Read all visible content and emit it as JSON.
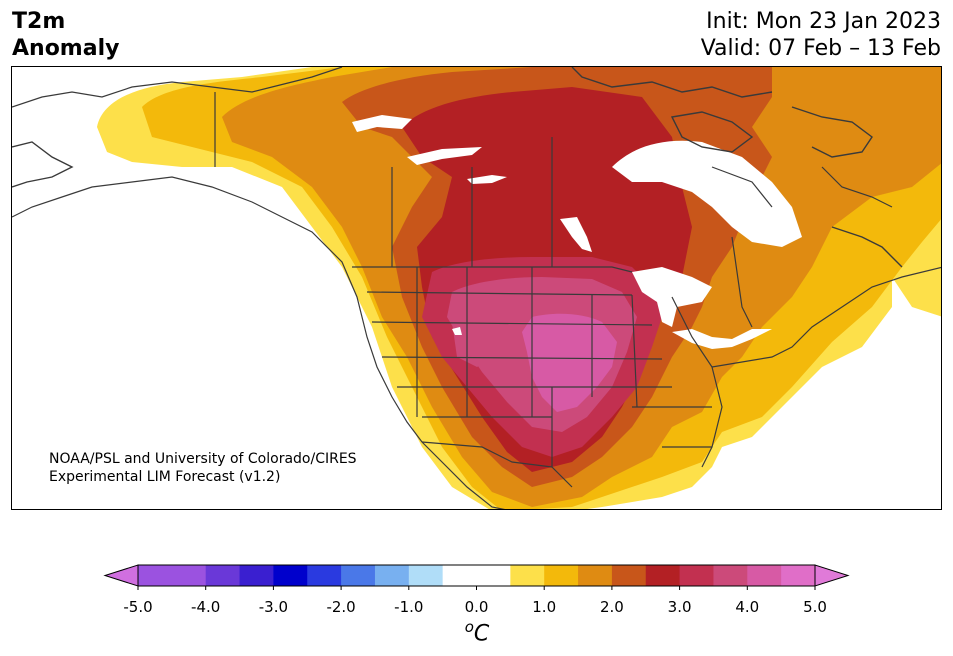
{
  "header": {
    "title_line1": "T2m",
    "title_line2": "Anomaly",
    "init": "Init: Mon 23 Jan 2023",
    "valid": "Valid: 07 Feb – 13 Feb"
  },
  "map": {
    "credit_line1": "NOAA/PSL and University of Colorado/CIRES",
    "credit_line2": "Experimental LIM Forecast (v1.2)",
    "region": "North America",
    "features": [
      "coastlines",
      "country-borders",
      "us-state-borders",
      "canadian-province-borders",
      "great-lakes"
    ]
  },
  "colorbar": {
    "unit_sup": "o",
    "unit_main": "C",
    "extend": "both",
    "ticks": [
      "-5.0",
      "-4.0",
      "-3.0",
      "-2.0",
      "-1.0",
      "0.0",
      "1.0",
      "2.0",
      "3.0",
      "4.0",
      "5.0"
    ],
    "under_color": "#d06fe0",
    "over_color": "#e07ad8",
    "levels": [
      {
        "lo": -5.0,
        "hi": -4.5,
        "color": "#9b52e0"
      },
      {
        "lo": -4.5,
        "hi": -4.0,
        "color": "#9b52e0"
      },
      {
        "lo": -4.0,
        "hi": -3.5,
        "color": "#6a38d8"
      },
      {
        "lo": -3.5,
        "hi": -3.0,
        "color": "#3a1fd0"
      },
      {
        "lo": -3.0,
        "hi": -2.5,
        "color": "#0000cc"
      },
      {
        "lo": -2.5,
        "hi": -2.0,
        "color": "#2a3ae0"
      },
      {
        "lo": -2.0,
        "hi": -1.5,
        "color": "#4a78e8"
      },
      {
        "lo": -1.5,
        "hi": -1.0,
        "color": "#78b0f0"
      },
      {
        "lo": -1.0,
        "hi": -0.5,
        "color": "#b0ddf8"
      },
      {
        "lo": -0.5,
        "hi": 0.5,
        "color": "#ffffff"
      },
      {
        "lo": 0.5,
        "hi": 1.0,
        "color": "#fde04a"
      },
      {
        "lo": 1.0,
        "hi": 1.5,
        "color": "#f3b90b"
      },
      {
        "lo": 1.5,
        "hi": 2.0,
        "color": "#df8b12"
      },
      {
        "lo": 2.0,
        "hi": 2.5,
        "color": "#c8561a"
      },
      {
        "lo": 2.5,
        "hi": 3.0,
        "color": "#b32024"
      },
      {
        "lo": 3.0,
        "hi": 3.5,
        "color": "#c23050"
      },
      {
        "lo": 3.5,
        "hi": 4.0,
        "color": "#cc4a7a"
      },
      {
        "lo": 4.0,
        "hi": 4.5,
        "color": "#d75aa5"
      },
      {
        "lo": 4.5,
        "hi": 5.0,
        "color": "#e06ec8"
      }
    ]
  },
  "colors": {
    "anom_0_5": "#fde04a",
    "anom_1_0": "#f3b90b",
    "anom_1_5": "#df8b12",
    "anom_2_0": "#c8561a",
    "anom_2_5": "#b32024",
    "anom_3_0": "#c23050",
    "anom_3_5": "#cc4a7a",
    "anom_4_0": "#d75aa5",
    "border": "#3a3a3a"
  }
}
